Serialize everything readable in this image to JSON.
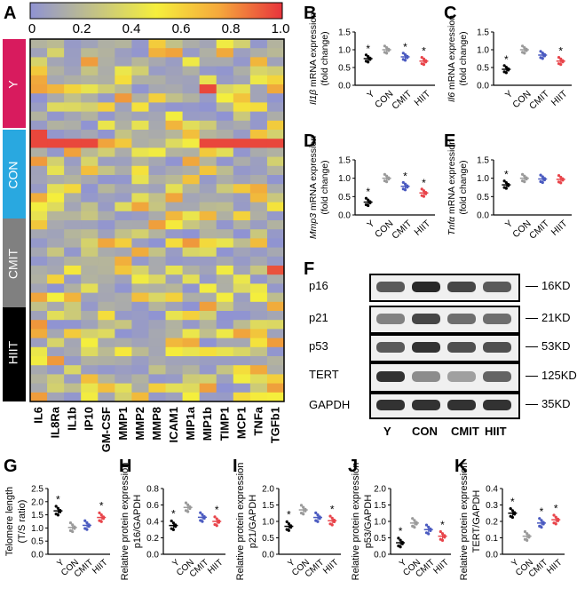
{
  "panels": {
    "A": "A",
    "B": "B",
    "C": "C",
    "D": "D",
    "E": "E",
    "F": "F",
    "G": "G",
    "H": "H",
    "I": "I",
    "J": "J",
    "K": "K"
  },
  "colors": {
    "Y": "#d81b5e",
    "CON": "#29a8e0",
    "CMIT": "#808080",
    "HIIT": "#000000",
    "dot_Y": "#000000",
    "dot_CON": "#9a9a9a",
    "dot_CMIT": "#4a5ac0",
    "dot_HIIT": "#e8444a",
    "heat_low": "#8f93d3",
    "heat_mid": "#f5ef3c",
    "heat_high": "#e8343c"
  },
  "heatmap": {
    "colorbar_ticks": [
      "0",
      "0.2",
      "0.4",
      "0.6",
      "0.8",
      "1.0"
    ],
    "groups": [
      "Y",
      "CON",
      "CMIT",
      "HIIT"
    ],
    "columns": [
      "IL6",
      "IL8Ra",
      "IL1b",
      "IP10",
      "GM-CSF",
      "MMP1",
      "MMP2",
      "MMP8",
      "ICAM1",
      "MIP1a",
      "MIP1b",
      "TIMP1",
      "MCP1",
      "TNFa",
      "TGFb1"
    ]
  },
  "blot": {
    "rows": [
      "p16",
      "p21",
      "p53",
      "TERT",
      "GAPDH"
    ],
    "sizes": [
      "16KD",
      "21KD",
      "53KD",
      "125KD",
      "35KD"
    ],
    "lanes": [
      "Y",
      "CON",
      "CMIT",
      "HIIT"
    ]
  },
  "chart_data": [
    {
      "panel": "B",
      "type": "scatter",
      "ylabel": "Il1β mRNA expression (fold change)",
      "ylabel_italic": "Il1β",
      "ylabel_rest": " mRNA expression",
      "ylabel2": "(fold change)",
      "categories": [
        "Y",
        "CON",
        "CMIT",
        "HIIT"
      ],
      "ylim": [
        0,
        1.5
      ],
      "yticks": [
        "0.0",
        "0.5",
        "1.0",
        "1.5"
      ],
      "values": [
        0.75,
        1.0,
        0.8,
        0.68
      ],
      "stars": [
        true,
        false,
        true,
        true
      ]
    },
    {
      "panel": "C",
      "type": "scatter",
      "ylabel": "Il6 mRNA expression (fold change)",
      "ylabel_italic": "Il6",
      "ylabel_rest": " mRNA expression",
      "ylabel2": "(fold change)",
      "categories": [
        "Y",
        "CON",
        "CMIT",
        "HIIT"
      ],
      "ylim": [
        0,
        1.5
      ],
      "yticks": [
        "0.0",
        "0.5",
        "1.0",
        "1.5"
      ],
      "values": [
        0.45,
        1.0,
        0.85,
        0.68
      ],
      "stars": [
        true,
        false,
        false,
        true
      ]
    },
    {
      "panel": "D",
      "type": "scatter",
      "ylabel": "Mmp3 mRNA expression (fold change)",
      "ylabel_italic": "Mmp3",
      "ylabel_rest": " mRNA expression",
      "ylabel2": "(fold change)",
      "categories": [
        "Y",
        "CON",
        "CMIT",
        "HIIT"
      ],
      "ylim": [
        0,
        1.5
      ],
      "yticks": [
        "0.0",
        "0.5",
        "1.0",
        "1.5"
      ],
      "values": [
        0.35,
        1.0,
        0.78,
        0.6
      ],
      "stars": [
        true,
        false,
        true,
        true
      ]
    },
    {
      "panel": "E",
      "type": "scatter",
      "ylabel": "Tnfα mRNA expression (fold change)",
      "ylabel_italic": "Tnfα",
      "ylabel_rest": " mRNA expression",
      "ylabel2": "(fold change)",
      "categories": [
        "Y",
        "CON",
        "CMIT",
        "HIIT"
      ],
      "ylim": [
        0,
        1.5
      ],
      "yticks": [
        "0.0",
        "0.5",
        "1.0",
        "1.5"
      ],
      "values": [
        0.82,
        1.0,
        0.98,
        0.97
      ],
      "stars": [
        true,
        false,
        false,
        false
      ]
    },
    {
      "panel": "G",
      "type": "scatter",
      "ylabel": "Telomere length",
      "ylabel2": "(T/S ratio)",
      "categories": [
        "Y",
        "CON",
        "CMIT",
        "HIIT"
      ],
      "ylim": [
        0,
        2.5
      ],
      "yticks": [
        "0.0",
        "0.5",
        "1.0",
        "1.5",
        "2.0",
        "2.5"
      ],
      "values": [
        1.65,
        1.02,
        1.1,
        1.4
      ],
      "stars": [
        true,
        false,
        false,
        true
      ]
    },
    {
      "panel": "H",
      "type": "scatter",
      "ylabel": "Relative protein expression",
      "ylabel2": "p16/GAPDH",
      "categories": [
        "Y",
        "CON",
        "CMIT",
        "HIIT"
      ],
      "ylim": [
        0,
        0.8
      ],
      "yticks": [
        "0.0",
        "0.2",
        "0.4",
        "0.6",
        "0.8"
      ],
      "values": [
        0.35,
        0.57,
        0.45,
        0.4
      ],
      "stars": [
        true,
        false,
        false,
        true
      ]
    },
    {
      "panel": "I",
      "type": "scatter",
      "ylabel": "Relative protein expression",
      "ylabel2": "p21/GAPDH",
      "categories": [
        "Y",
        "CON",
        "CMIT",
        "HIIT"
      ],
      "ylim": [
        0,
        2.0
      ],
      "yticks": [
        "0.0",
        "0.5",
        "1.0",
        "1.5",
        "2.0"
      ],
      "values": [
        0.85,
        1.35,
        1.12,
        1.02
      ],
      "stars": [
        true,
        false,
        false,
        true
      ]
    },
    {
      "panel": "J",
      "type": "scatter",
      "ylabel": "Relative protein expression",
      "ylabel2": "p53/GAPDH",
      "categories": [
        "Y",
        "CON",
        "CMIT",
        "HIIT"
      ],
      "ylim": [
        0,
        2.0
      ],
      "yticks": [
        "0.0",
        "0.5",
        "1.0",
        "1.5",
        "2.0"
      ],
      "values": [
        0.35,
        0.95,
        0.75,
        0.55
      ],
      "stars": [
        true,
        false,
        false,
        true
      ]
    },
    {
      "panel": "K",
      "type": "scatter",
      "ylabel": "Relative protein expression",
      "ylabel2": "TERT/GAPDH",
      "categories": [
        "Y",
        "CON",
        "CMIT",
        "HIIT"
      ],
      "ylim": [
        0,
        0.4
      ],
      "yticks": [
        "0.0",
        "0.1",
        "0.2",
        "0.3",
        "0.4"
      ],
      "values": [
        0.25,
        0.11,
        0.19,
        0.21
      ],
      "stars": [
        true,
        false,
        true,
        true
      ]
    }
  ]
}
